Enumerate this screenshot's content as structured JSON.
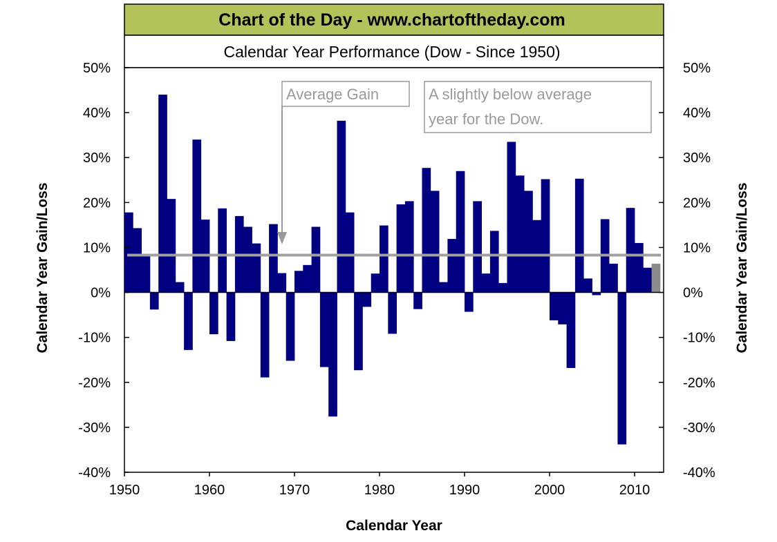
{
  "colors": {
    "banner_bg": "#b5c25a",
    "bar": "#000080",
    "bar_highlight": "#8c8c8c",
    "average_line": "#a0a0a0",
    "annotation": "#9a9a9a",
    "frame": "#000000"
  },
  "chart_data": {
    "type": "bar",
    "banner": "Chart of the Day - www.chartoftheday.com",
    "title": "Calendar Year Performance (Dow - Since 1950)",
    "xlabel": "Calendar Year",
    "ylabel_left": "Calendar Year Gain/Loss",
    "ylabel_right": "Calendar Year Gain/Loss",
    "ylim": [
      -0.4,
      0.5
    ],
    "yticks": [
      "50%",
      "40%",
      "30%",
      "20%",
      "10%",
      "0%",
      "-10%",
      "-20%",
      "-30%",
      "-40%"
    ],
    "xticks": [
      "1950",
      "1960",
      "1970",
      "1980",
      "1990",
      "2000",
      "2010"
    ],
    "grid": false,
    "legend": "none",
    "average_gain": 0.083,
    "years": [
      1950,
      1951,
      1952,
      1953,
      1954,
      1955,
      1956,
      1957,
      1958,
      1959,
      1960,
      1961,
      1962,
      1963,
      1964,
      1965,
      1966,
      1967,
      1968,
      1969,
      1970,
      1971,
      1972,
      1973,
      1974,
      1975,
      1976,
      1977,
      1978,
      1979,
      1980,
      1981,
      1982,
      1983,
      1984,
      1985,
      1986,
      1987,
      1988,
      1989,
      1990,
      1991,
      1992,
      1993,
      1994,
      1995,
      1996,
      1997,
      1998,
      1999,
      2000,
      2001,
      2002,
      2003,
      2004,
      2005,
      2006,
      2007,
      2008,
      2009,
      2010,
      2011,
      2012
    ],
    "values": [
      0.178,
      0.143,
      0.084,
      -0.038,
      0.44,
      0.208,
      0.023,
      -0.128,
      0.34,
      0.162,
      -0.093,
      0.187,
      -0.108,
      0.17,
      0.146,
      0.109,
      -0.189,
      0.152,
      0.043,
      -0.152,
      0.048,
      0.061,
      0.146,
      -0.166,
      -0.276,
      0.382,
      0.178,
      -0.173,
      -0.032,
      0.042,
      0.149,
      -0.092,
      0.196,
      0.203,
      -0.037,
      0.277,
      0.226,
      0.023,
      0.119,
      0.27,
      -0.043,
      0.203,
      0.042,
      0.137,
      0.021,
      0.335,
      0.26,
      0.226,
      0.161,
      0.252,
      -0.062,
      -0.071,
      -0.168,
      0.253,
      0.031,
      -0.006,
      0.163,
      0.064,
      -0.338,
      0.188,
      0.11,
      0.055,
      0.064
    ],
    "highlight_last": true,
    "annotations": {
      "average_gain_label": "Average Gain",
      "note_line1": "A slightly below average",
      "note_line2": "year for the Dow."
    }
  }
}
